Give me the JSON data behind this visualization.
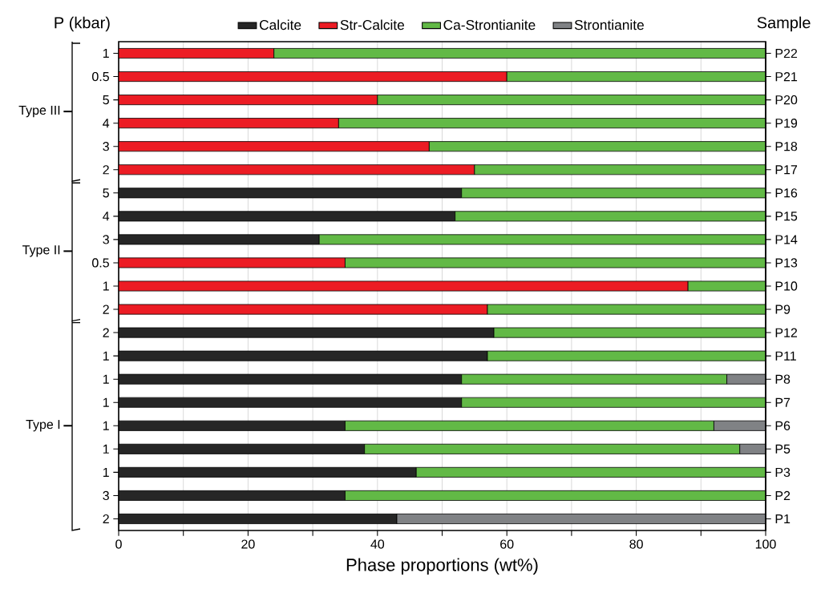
{
  "chart_data": {
    "type": "bar",
    "orientation": "horizontal",
    "stacked": true,
    "ylabel": "P (kbar)",
    "y2label": "Sample",
    "xlabel": "Phase proportions (wt%)",
    "categories": [
      "1",
      "0.5",
      "5",
      "4",
      "3",
      "2",
      "5",
      "4",
      "3",
      "0.5",
      "1",
      "2",
      "2",
      "1",
      "1",
      "1",
      "1",
      "1",
      "1",
      "3",
      "2"
    ],
    "y2_categories": [
      "P22",
      "P21",
      "P20",
      "P19",
      "P18",
      "P17",
      "P16",
      "P15",
      "P14",
      "P13",
      "P10",
      "P9",
      "P12",
      "P11",
      "P8",
      "P7",
      "P6",
      "P5",
      "P3",
      "P2",
      "P1"
    ],
    "series": [
      {
        "name": "Calcite",
        "color": "#262626",
        "values": [
          null,
          null,
          null,
          null,
          null,
          null,
          53,
          52,
          31,
          null,
          null,
          null,
          58,
          57,
          53,
          53,
          35,
          38,
          46,
          35,
          43
        ]
      },
      {
        "name": "Str-Calcite",
        "color": "#ec1c24",
        "values": [
          24,
          60,
          40,
          34,
          48,
          55,
          null,
          null,
          null,
          35,
          88,
          57,
          null,
          null,
          null,
          null,
          null,
          null,
          null,
          null,
          null
        ]
      },
      {
        "name": "Ca-Strontianite",
        "color": "#62b946",
        "values": [
          76,
          40,
          60,
          66,
          52,
          45,
          47,
          48,
          69,
          65,
          12,
          43,
          42,
          43,
          41,
          47,
          57,
          58,
          54,
          65,
          null
        ]
      },
      {
        "name": "Strontianite",
        "color": "#808285",
        "values": [
          null,
          null,
          null,
          null,
          null,
          null,
          null,
          null,
          null,
          null,
          null,
          null,
          null,
          null,
          6,
          null,
          8,
          4,
          null,
          null,
          57
        ]
      }
    ],
    "xlim": [
      0,
      100
    ],
    "xticks": [
      0,
      20,
      40,
      60,
      80,
      100
    ],
    "grid": "x",
    "legend": "top",
    "annotations": [
      "Type III",
      "Type II",
      "Type I"
    ]
  }
}
